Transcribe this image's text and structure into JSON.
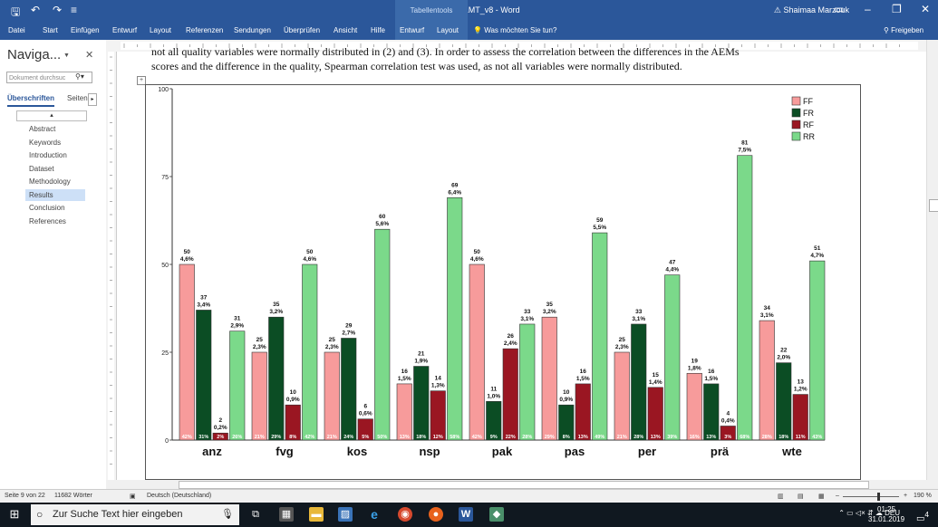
{
  "window": {
    "doc_title": "PAPER_ICCLMT_v8 - Word",
    "tabletools": "Tabellentools",
    "user": "Shaimaa Marzouk"
  },
  "ribbon": {
    "tabs": [
      "Datei",
      "Start",
      "Einfügen",
      "Entwurf",
      "Layout",
      "Referenzen",
      "Sendungen",
      "Überprüfen",
      "Ansicht",
      "Hilfe",
      "Entwurf",
      "Layout"
    ],
    "tell_me": "Was möchten Sie tun?",
    "share": "Freigeben"
  },
  "nav": {
    "title": "Naviga...",
    "search_placeholder": "Dokument durchsuc",
    "tab_headings": "Überschriften",
    "tab_pages": "Seiten",
    "items": [
      "Abstract",
      "Keywords",
      "Introduction",
      "Dataset",
      "Methodology",
      "Results",
      "Conclusion",
      "References"
    ],
    "active_index": 5
  },
  "document": {
    "line1": "not all quality variables were normally distributed in (2) and (3). In order to assess the correlation between the differences in the AEMs",
    "line2": "scores and the difference in the quality, Spearman correlation test was used, as not all variables were normally distributed."
  },
  "chart_data": {
    "type": "bar",
    "categories": [
      "anz",
      "fvg",
      "kos",
      "nsp",
      "pak",
      "pas",
      "per",
      "prä",
      "wte"
    ],
    "ylim": [
      0,
      100
    ],
    "yticks": [
      "0",
      "25",
      "50",
      "75",
      "100"
    ],
    "legend_position": "top-right",
    "series": [
      {
        "name": "FF",
        "color": "#f79b9b",
        "values": [
          50,
          25,
          25,
          16,
          50,
          35,
          25,
          19,
          34
        ],
        "labels": [
          "4,6%",
          "2,3%",
          "2,3%",
          "1,5%",
          "4,6%",
          "3,2%",
          "2,3%",
          "1,8%",
          "3,1%"
        ],
        "base": [
          "42%",
          "21%",
          "21%",
          "13%",
          "42%",
          "29%",
          "21%",
          "16%",
          "28%"
        ]
      },
      {
        "name": "FR",
        "color": "#0b4d24",
        "values": [
          37,
          35,
          29,
          21,
          11,
          10,
          33,
          16,
          22
        ],
        "labels": [
          "3,4%",
          "3,2%",
          "2,7%",
          "1,9%",
          "1,0%",
          "0,9%",
          "3,1%",
          "1,5%",
          "2,0%"
        ],
        "base": [
          "31%",
          "29%",
          "24%",
          "18%",
          "9%",
          "8%",
          "28%",
          "13%",
          "18%"
        ]
      },
      {
        "name": "RF",
        "color": "#9a1622",
        "values": [
          2,
          10,
          6,
          14,
          26,
          16,
          15,
          4,
          13
        ],
        "labels": [
          "0,2%",
          "0,9%",
          "0,6%",
          "1,3%",
          "2,4%",
          "1,5%",
          "1,4%",
          "0,4%",
          "1,2%"
        ],
        "base": [
          "2%",
          "8%",
          "5%",
          "12%",
          "22%",
          "13%",
          "13%",
          "3%",
          "11%"
        ]
      },
      {
        "name": "RR",
        "color": "#7bd98a",
        "values": [
          31,
          50,
          60,
          69,
          33,
          59,
          47,
          81,
          51
        ],
        "labels": [
          "2,9%",
          "4,6%",
          "5,6%",
          "6,4%",
          "3,1%",
          "5,5%",
          "4,4%",
          "7,5%",
          "4,7%"
        ],
        "base": [
          "26%",
          "42%",
          "50%",
          "58%",
          "28%",
          "49%",
          "39%",
          "68%",
          "43%"
        ]
      }
    ]
  },
  "status": {
    "page": "Seite 9 von 22",
    "words": "11682 Wörter",
    "language": "Deutsch (Deutschland)",
    "zoom": "190 %"
  },
  "taskbar": {
    "search": "Zur Suche Text hier eingeben",
    "lang": "DEU",
    "time": "01:25",
    "date": "31.01.2019",
    "notifications": "4"
  }
}
